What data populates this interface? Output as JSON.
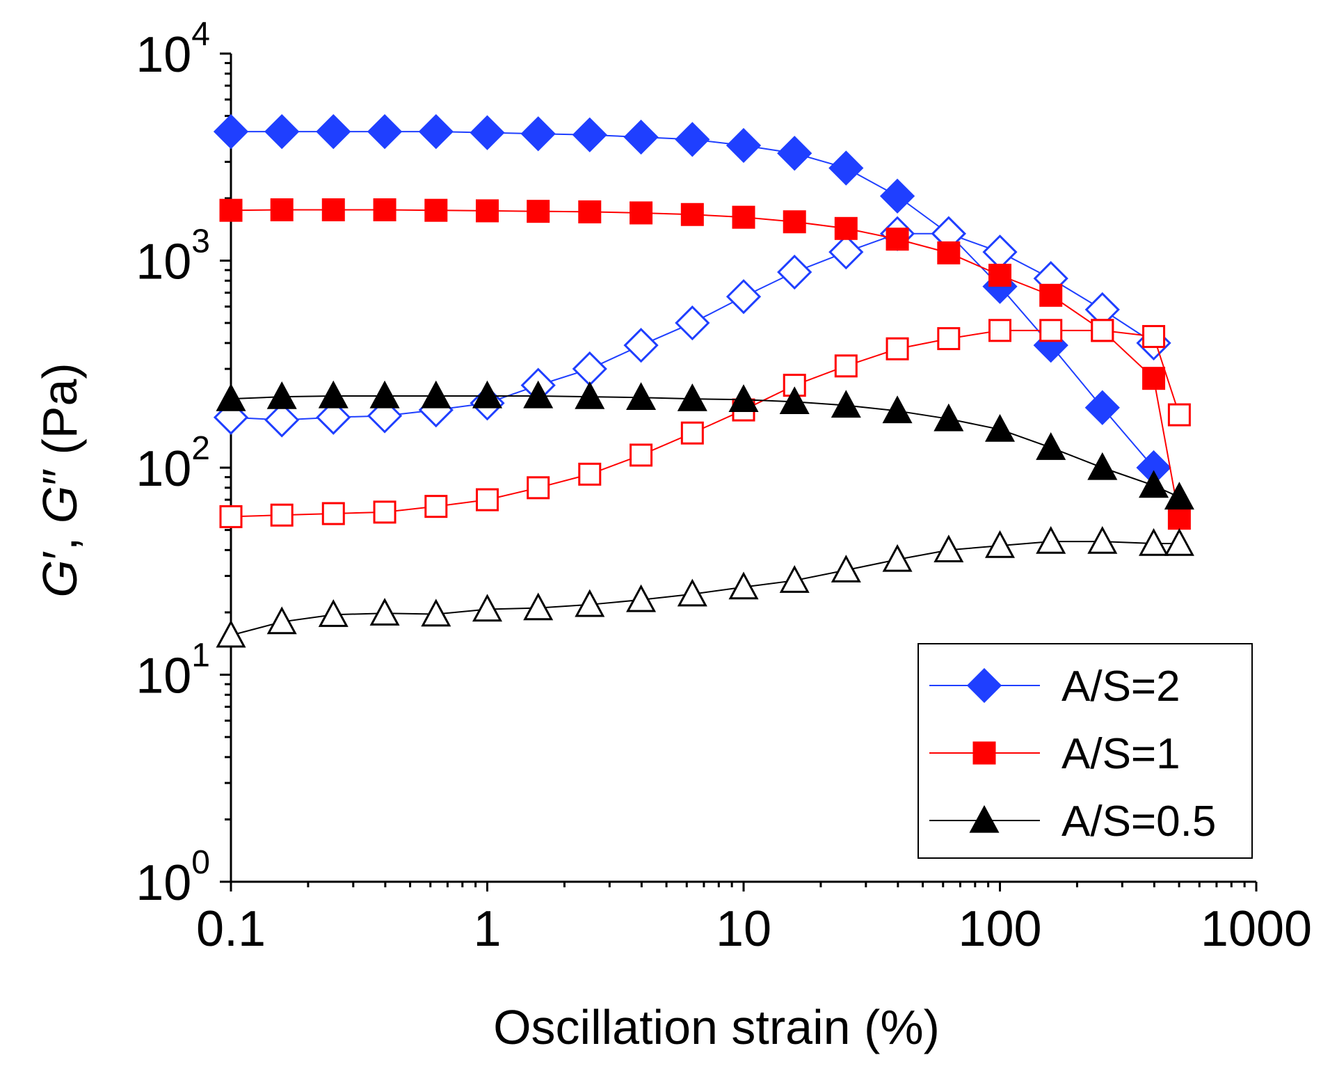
{
  "chart_data": {
    "type": "scatter",
    "x_scale": "log",
    "y_scale": "log",
    "xlim": [
      0.1,
      1000
    ],
    "ylim": [
      1,
      10000
    ],
    "xlabel": "Oscillation strain (%)",
    "ylabel": {
      "g1": "G",
      "g1_prime": "′",
      "sep": ", ",
      "g2": "G",
      "g2_prime": "″",
      "unit": " (Pa)"
    },
    "x_ticks": [
      {
        "value": 0.1,
        "label": "0.1"
      },
      {
        "value": 1,
        "label": "1"
      },
      {
        "value": 10,
        "label": "10"
      },
      {
        "value": 100,
        "label": "100"
      },
      {
        "value": 1000,
        "label": "1000"
      }
    ],
    "y_ticks": [
      {
        "value": 1,
        "base": "10",
        "exp": "0"
      },
      {
        "value": 10,
        "base": "10",
        "exp": "1"
      },
      {
        "value": 100,
        "base": "10",
        "exp": "2"
      },
      {
        "value": 1000,
        "base": "10",
        "exp": "3"
      },
      {
        "value": 10000,
        "base": "10",
        "exp": "4"
      }
    ],
    "x": [
      0.1,
      0.158,
      0.251,
      0.398,
      0.631,
      1,
      1.58,
      2.51,
      3.98,
      6.31,
      10,
      15.8,
      25.1,
      39.8,
      63.1,
      100,
      158,
      251,
      398,
      501
    ],
    "series": [
      {
        "name": "A/S=2 G'",
        "legend": "A/S=2",
        "marker": "diamond",
        "filled": true,
        "color": "#1f3fff",
        "values": [
          4200,
          4200,
          4200,
          4200,
          4200,
          4150,
          4100,
          4050,
          3950,
          3850,
          3600,
          3300,
          2800,
          2050,
          1350,
          750,
          390,
          195,
          100,
          null
        ]
      },
      {
        "name": "A/S=2 G''",
        "marker": "diamond",
        "filled": false,
        "color": "#1f3fff",
        "values": [
          175,
          170,
          175,
          178,
          190,
          205,
          250,
          300,
          390,
          500,
          670,
          880,
          1100,
          1350,
          1350,
          1100,
          820,
          580,
          400,
          null
        ]
      },
      {
        "name": "A/S=1 G'",
        "legend": "A/S=1",
        "marker": "square",
        "filled": true,
        "color": "#ff0000",
        "values": [
          1750,
          1760,
          1760,
          1760,
          1750,
          1740,
          1730,
          1720,
          1700,
          1670,
          1620,
          1540,
          1430,
          1270,
          1090,
          850,
          680,
          460,
          270,
          57
        ]
      },
      {
        "name": "A/S=1 G''",
        "marker": "square",
        "filled": false,
        "color": "#ff0000",
        "values": [
          58,
          59,
          60,
          61,
          65,
          70,
          80,
          93,
          115,
          147,
          190,
          250,
          310,
          375,
          420,
          460,
          460,
          460,
          430,
          180
        ]
      },
      {
        "name": "A/S=0.5 G'",
        "legend": "A/S=0.5",
        "marker": "triangle",
        "filled": true,
        "color": "#000000",
        "values": [
          215,
          220,
          222,
          222,
          222,
          222,
          222,
          220,
          218,
          215,
          213,
          208,
          200,
          188,
          172,
          153,
          125,
          100,
          82,
          72
        ]
      },
      {
        "name": "A/S=0.5 G''",
        "marker": "triangle",
        "filled": false,
        "color": "#000000",
        "values": [
          15.5,
          18,
          19.5,
          19.8,
          19.6,
          20.7,
          21,
          21.8,
          23,
          24.5,
          26.5,
          28.5,
          32,
          36,
          40,
          42,
          44,
          44,
          43,
          43
        ]
      }
    ],
    "legend_position": "bottom-right",
    "grid": false
  }
}
